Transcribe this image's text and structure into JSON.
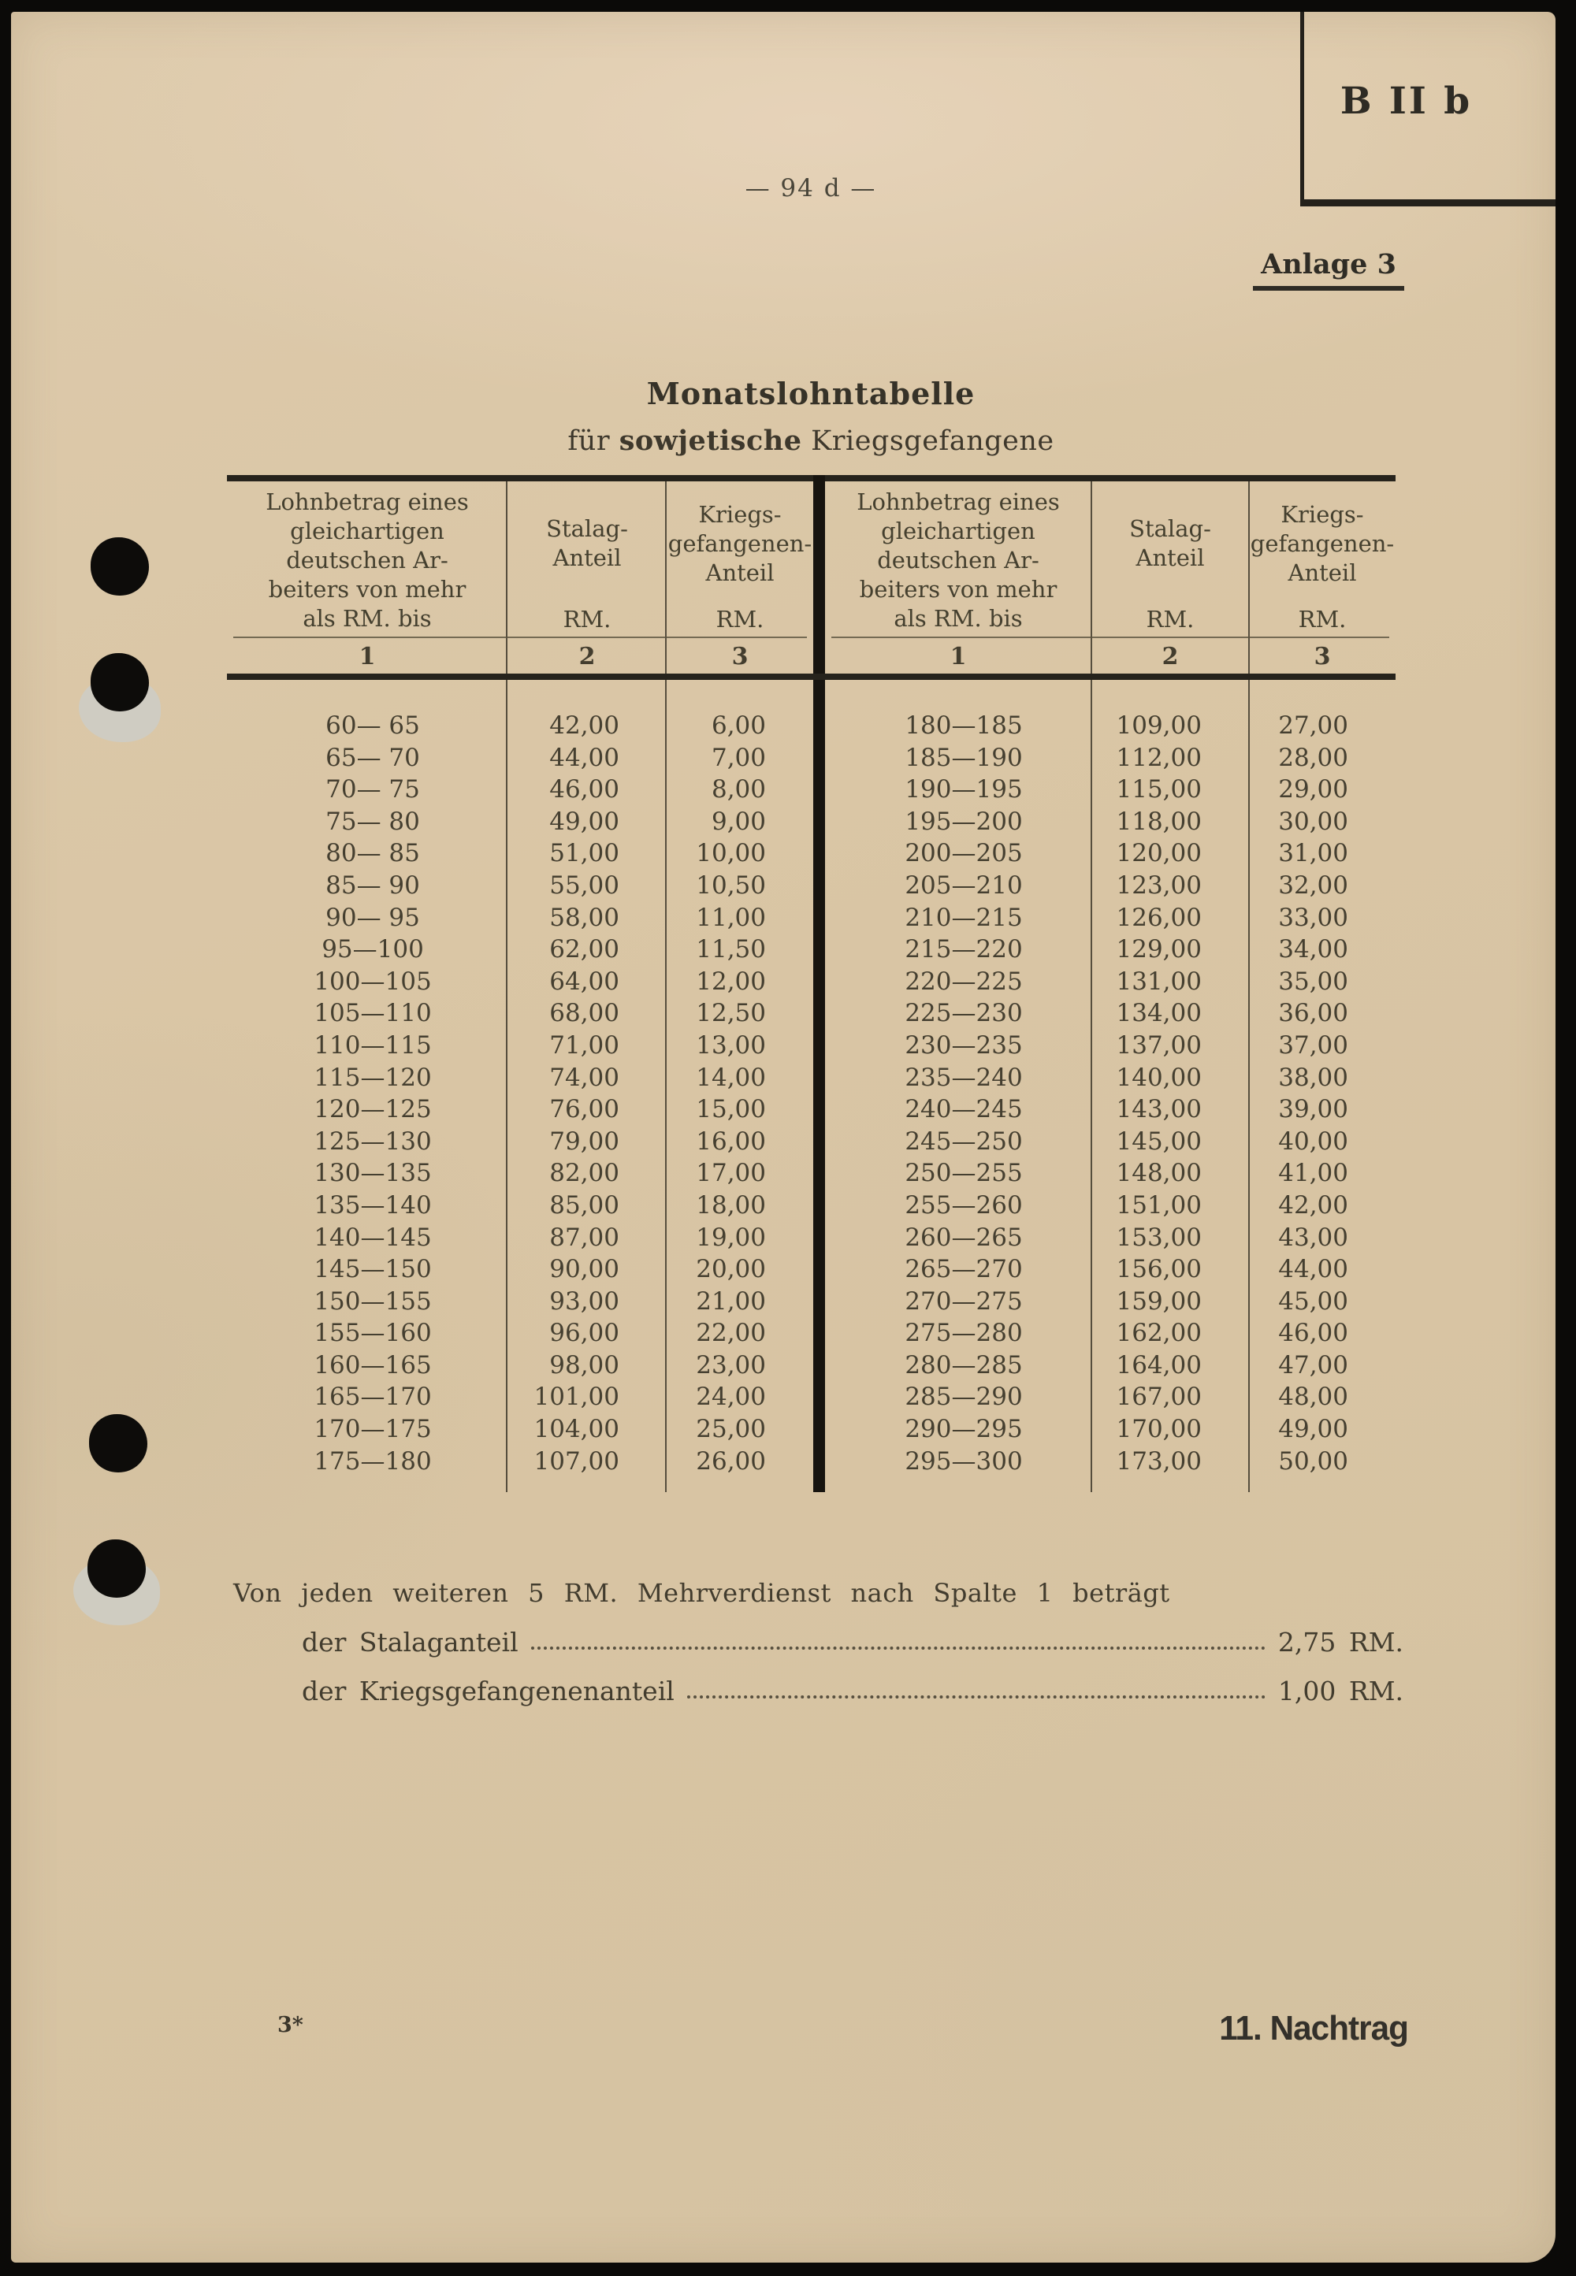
{
  "colors": {
    "paper": "#d9c5a4",
    "ink": "#3e382c",
    "rule": "#26231c",
    "scanner_background": "#0b0a08"
  },
  "page": {
    "stamp": "B II b",
    "page_number": "— 94 d —",
    "annex": "Anlage 3",
    "title": "Monatslohntabelle",
    "subtitle_prefix": "für ",
    "subtitle_bold": "sowjetische",
    "subtitle_suffix": " Kriegsgefangene",
    "footer_note": "Von jeden weiteren 5 RM. Mehrverdienst nach Spalte 1 beträgt",
    "footer_items": [
      {
        "label": "der Stalaganteil",
        "value": "2,75 RM."
      },
      {
        "label": "der Kriegsgefangenenanteil",
        "value": "1,00 RM."
      }
    ],
    "signature": "3*",
    "supplement": "11. Nachtrag"
  },
  "table": {
    "header": {
      "col1": "Lohnbetrag eines\ngleichartigen\ndeutschen Ar-\nbeiters von mehr\nals RM. bis",
      "col2": "Stalag-\nAnteil",
      "col3": "Kriegs-\ngefangenen-\nAnteil",
      "unit": "RM.",
      "numbers": [
        "1",
        "2",
        "3"
      ]
    },
    "left_rows": [
      {
        "range": "60— 65",
        "stalag": "42,00",
        "pow": "6,00"
      },
      {
        "range": "65— 70",
        "stalag": "44,00",
        "pow": "7,00"
      },
      {
        "range": "70— 75",
        "stalag": "46,00",
        "pow": "8,00"
      },
      {
        "range": "75— 80",
        "stalag": "49,00",
        "pow": "9,00"
      },
      {
        "range": "80— 85",
        "stalag": "51,00",
        "pow": "10,00"
      },
      {
        "range": "85— 90",
        "stalag": "55,00",
        "pow": "10,50"
      },
      {
        "range": "90— 95",
        "stalag": "58,00",
        "pow": "11,00"
      },
      {
        "range": "95—100",
        "stalag": "62,00",
        "pow": "11,50"
      },
      {
        "range": "100—105",
        "stalag": "64,00",
        "pow": "12,00"
      },
      {
        "range": "105—110",
        "stalag": "68,00",
        "pow": "12,50"
      },
      {
        "range": "110—115",
        "stalag": "71,00",
        "pow": "13,00"
      },
      {
        "range": "115—120",
        "stalag": "74,00",
        "pow": "14,00"
      },
      {
        "range": "120—125",
        "stalag": "76,00",
        "pow": "15,00"
      },
      {
        "range": "125—130",
        "stalag": "79,00",
        "pow": "16,00"
      },
      {
        "range": "130—135",
        "stalag": "82,00",
        "pow": "17,00"
      },
      {
        "range": "135—140",
        "stalag": "85,00",
        "pow": "18,00"
      },
      {
        "range": "140—145",
        "stalag": "87,00",
        "pow": "19,00"
      },
      {
        "range": "145—150",
        "stalag": "90,00",
        "pow": "20,00"
      },
      {
        "range": "150—155",
        "stalag": "93,00",
        "pow": "21,00"
      },
      {
        "range": "155—160",
        "stalag": "96,00",
        "pow": "22,00"
      },
      {
        "range": "160—165",
        "stalag": "98,00",
        "pow": "23,00"
      },
      {
        "range": "165—170",
        "stalag": "101,00",
        "pow": "24,00"
      },
      {
        "range": "170—175",
        "stalag": "104,00",
        "pow": "25,00"
      },
      {
        "range": "175—180",
        "stalag": "107,00",
        "pow": "26,00"
      }
    ],
    "right_rows": [
      {
        "range": "180—185",
        "stalag": "109,00",
        "pow": "27,00"
      },
      {
        "range": "185—190",
        "stalag": "112,00",
        "pow": "28,00"
      },
      {
        "range": "190—195",
        "stalag": "115,00",
        "pow": "29,00"
      },
      {
        "range": "195—200",
        "stalag": "118,00",
        "pow": "30,00"
      },
      {
        "range": "200—205",
        "stalag": "120,00",
        "pow": "31,00"
      },
      {
        "range": "205—210",
        "stalag": "123,00",
        "pow": "32,00"
      },
      {
        "range": "210—215",
        "stalag": "126,00",
        "pow": "33,00"
      },
      {
        "range": "215—220",
        "stalag": "129,00",
        "pow": "34,00"
      },
      {
        "range": "220—225",
        "stalag": "131,00",
        "pow": "35,00"
      },
      {
        "range": "225—230",
        "stalag": "134,00",
        "pow": "36,00"
      },
      {
        "range": "230—235",
        "stalag": "137,00",
        "pow": "37,00"
      },
      {
        "range": "235—240",
        "stalag": "140,00",
        "pow": "38,00"
      },
      {
        "range": "240—245",
        "stalag": "143,00",
        "pow": "39,00"
      },
      {
        "range": "245—250",
        "stalag": "145,00",
        "pow": "40,00"
      },
      {
        "range": "250—255",
        "stalag": "148,00",
        "pow": "41,00"
      },
      {
        "range": "255—260",
        "stalag": "151,00",
        "pow": "42,00"
      },
      {
        "range": "260—265",
        "stalag": "153,00",
        "pow": "43,00"
      },
      {
        "range": "265—270",
        "stalag": "156,00",
        "pow": "44,00"
      },
      {
        "range": "270—275",
        "stalag": "159,00",
        "pow": "45,00"
      },
      {
        "range": "275—280",
        "stalag": "162,00",
        "pow": "46,00"
      },
      {
        "range": "280—285",
        "stalag": "164,00",
        "pow": "47,00"
      },
      {
        "range": "285—290",
        "stalag": "167,00",
        "pow": "48,00"
      },
      {
        "range": "290—295",
        "stalag": "170,00",
        "pow": "49,00"
      },
      {
        "range": "295—300",
        "stalag": "173,00",
        "pow": "50,00"
      }
    ]
  }
}
